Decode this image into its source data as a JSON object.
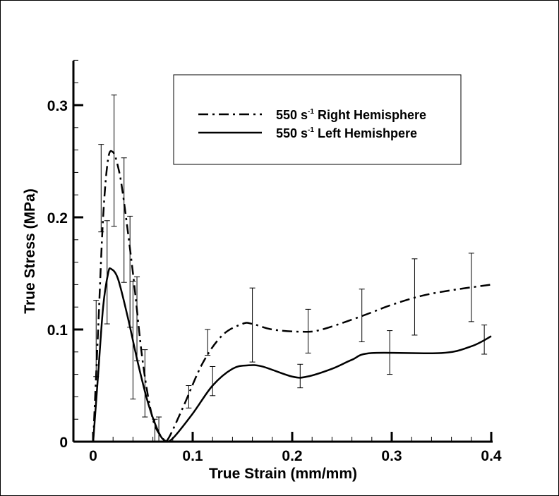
{
  "chart_data": {
    "type": "line",
    "title": "",
    "xlabel": "True Strain (mm/mm)",
    "ylabel": "True Stress (MPa)",
    "xlim": [
      -0.02,
      0.4
    ],
    "ylim": [
      0,
      0.34
    ],
    "xticks": [
      0,
      0.1,
      0.2,
      0.3,
      0.4
    ],
    "xtick_labels": [
      "0",
      "0.1",
      "0.2",
      "0.3",
      "0.4"
    ],
    "yticks": [
      0,
      0.1,
      0.2,
      0.3
    ],
    "ytick_labels": [
      "0",
      "0.1",
      "0.2",
      "0.3"
    ],
    "grid": false,
    "legend_position": "top-center",
    "series": [
      {
        "name": "550 s",
        "sup": "-1",
        "suffix": " Right Hemisphere",
        "style": "dash-dot",
        "x": [
          0,
          0.005,
          0.01,
          0.015,
          0.02,
          0.025,
          0.03,
          0.04,
          0.05,
          0.06,
          0.07,
          0.075,
          0.09,
          0.11,
          0.13,
          0.15,
          0.16,
          0.18,
          0.21,
          0.23,
          0.27,
          0.3,
          0.33,
          0.36,
          0.4
        ],
        "y": [
          0,
          0.1,
          0.2,
          0.252,
          0.258,
          0.245,
          0.22,
          0.15,
          0.07,
          0.02,
          0.003,
          0.002,
          0.03,
          0.07,
          0.095,
          0.105,
          0.105,
          0.1,
          0.098,
          0.1,
          0.112,
          0.122,
          0.13,
          0.135,
          0.14
        ]
      },
      {
        "name": "550 s",
        "sup": "-1",
        "suffix": " Left Hemishpere",
        "style": "solid",
        "x": [
          0,
          0.005,
          0.01,
          0.015,
          0.018,
          0.025,
          0.035,
          0.045,
          0.055,
          0.065,
          0.072,
          0.08,
          0.1,
          0.12,
          0.14,
          0.155,
          0.17,
          0.2,
          0.215,
          0.24,
          0.26,
          0.28,
          0.35,
          0.38,
          0.4
        ],
        "y": [
          0,
          0.06,
          0.12,
          0.15,
          0.154,
          0.145,
          0.11,
          0.07,
          0.035,
          0.01,
          0.001,
          0.003,
          0.025,
          0.05,
          0.065,
          0.068,
          0.067,
          0.058,
          0.058,
          0.065,
          0.073,
          0.079,
          0.079,
          0.085,
          0.094
        ]
      }
    ],
    "error_bars": [
      {
        "x": 0.003,
        "lo": 0.058,
        "hi": 0.126
      },
      {
        "x": 0.008,
        "lo": 0.187,
        "hi": 0.265
      },
      {
        "x": 0.014,
        "lo": 0.105,
        "hi": 0.197
      },
      {
        "x": 0.021,
        "lo": 0.192,
        "hi": 0.309
      },
      {
        "x": 0.031,
        "lo": 0.142,
        "hi": 0.253
      },
      {
        "x": 0.037,
        "lo": 0.102,
        "hi": 0.201
      },
      {
        "x": 0.04,
        "lo": 0.038,
        "hi": 0.143
      },
      {
        "x": 0.044,
        "lo": 0.072,
        "hi": 0.147
      },
      {
        "x": 0.052,
        "lo": 0.022,
        "hi": 0.082
      },
      {
        "x": 0.062,
        "lo": 0,
        "hi": 0.02
      },
      {
        "x": 0.066,
        "lo": 0,
        "hi": 0.022
      },
      {
        "x": 0.096,
        "lo": 0.03,
        "hi": 0.05
      },
      {
        "x": 0.115,
        "lo": 0.077,
        "hi": 0.1
      },
      {
        "x": 0.12,
        "lo": 0.041,
        "hi": 0.067
      },
      {
        "x": 0.16,
        "lo": 0.071,
        "hi": 0.137
      },
      {
        "x": 0.208,
        "lo": 0.048,
        "hi": 0.069
      },
      {
        "x": 0.216,
        "lo": 0.079,
        "hi": 0.118
      },
      {
        "x": 0.27,
        "lo": 0.089,
        "hi": 0.136
      },
      {
        "x": 0.298,
        "lo": 0.06,
        "hi": 0.099
      },
      {
        "x": 0.323,
        "lo": 0.095,
        "hi": 0.163
      },
      {
        "x": 0.38,
        "lo": 0.107,
        "hi": 0.168
      },
      {
        "x": 0.393,
        "lo": 0.078,
        "hi": 0.104
      }
    ]
  }
}
